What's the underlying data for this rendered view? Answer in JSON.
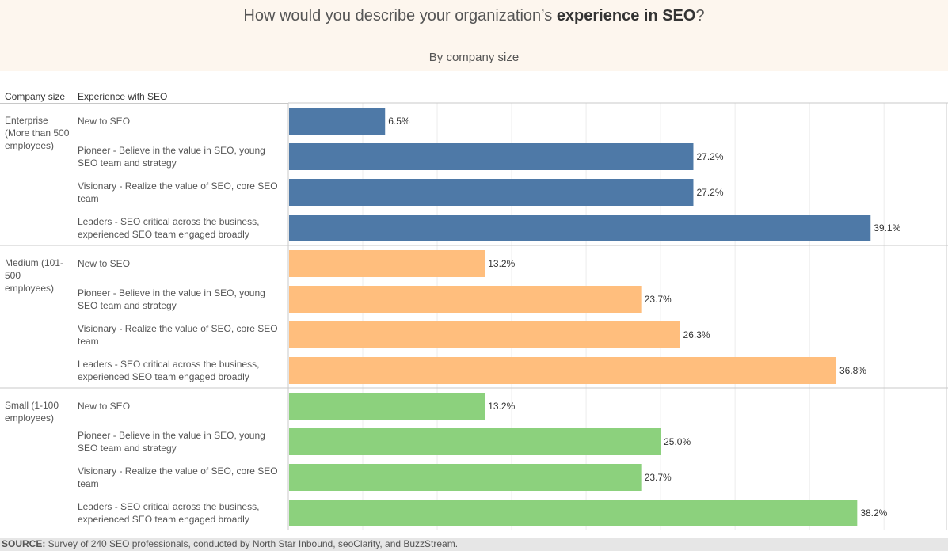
{
  "chart_data": {
    "type": "bar",
    "orientation": "horizontal",
    "title_prefix": "How would you describe your organization’s ",
    "title_bold": "experience in SEO",
    "title_suffix": "?",
    "subtitle": "By company size",
    "column_headers": [
      "Company size",
      "Experience with SEO"
    ],
    "categories": [
      "New to SEO",
      "Pioneer - Believe in the value in SEO, young SEO team and strategy",
      "Visionary - Realize the value of SEO, core SEO team",
      "Leaders - SEO critical across the business, experienced SEO team engaged broadly"
    ],
    "series": [
      {
        "name": "Enterprise (More than 500 employees)",
        "color": "#4e79a7",
        "values": [
          6.5,
          27.2,
          27.2,
          39.1
        ],
        "labels": [
          "6.5%",
          "27.2%",
          "27.2%",
          "39.1%"
        ]
      },
      {
        "name": "Medium (101-500 employees)",
        "color": "#ffbe7d",
        "values": [
          13.2,
          23.7,
          26.3,
          36.8
        ],
        "labels": [
          "13.2%",
          "23.7%",
          "26.3%",
          "36.8%"
        ]
      },
      {
        "name": "Small (1-100 employees)",
        "color": "#8cd17d",
        "values": [
          13.2,
          25.0,
          23.7,
          38.2
        ],
        "labels": [
          "13.2%",
          "25.0%",
          "23.7%",
          "38.2%"
        ]
      }
    ],
    "xlim": [
      0,
      43.5
    ],
    "grid": true,
    "source_label": "SOURCE:",
    "source_text": " Survey of 240 SEO professionals, conducted by North Star Inbound, seoClarity, and BuzzStream."
  }
}
